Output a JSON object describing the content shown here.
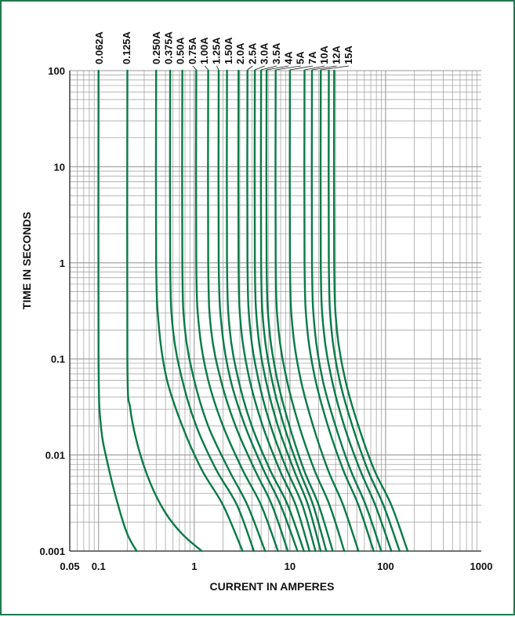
{
  "colors": {
    "curve": "#0a7a48",
    "grid": "#9a9a9a",
    "border": "#1e7b4f",
    "text": "#111111"
  },
  "chart_data": {
    "type": "line",
    "title": "",
    "xlabel": "CURRENT IN AMPERES",
    "ylabel": "TIME IN SECONDS",
    "x_scale": "log",
    "y_scale": "log",
    "xlim": [
      0.05,
      1000
    ],
    "ylim": [
      0.001,
      100
    ],
    "grid": true,
    "x_ticks": [
      {
        "value": 0.05,
        "label": "0.05"
      },
      {
        "value": 0.1,
        "label": "0.1"
      },
      {
        "value": 1,
        "label": "1"
      },
      {
        "value": 10,
        "label": "10"
      },
      {
        "value": 100,
        "label": "100"
      },
      {
        "value": 1000,
        "label": "1000"
      }
    ],
    "y_ticks": [
      {
        "value": 100,
        "label": "100"
      },
      {
        "value": 10,
        "label": "10"
      },
      {
        "value": 1,
        "label": "1"
      },
      {
        "value": 0.1,
        "label": "0.1"
      },
      {
        "value": 0.01,
        "label": "0.01"
      },
      {
        "value": 0.001,
        "label": "0.001"
      }
    ],
    "series": [
      {
        "name": "0.062A",
        "points": [
          [
            0.1,
            100
          ],
          [
            0.1,
            0.1
          ],
          [
            0.106,
            0.02
          ],
          [
            0.125,
            0.008
          ],
          [
            0.16,
            0.003
          ],
          [
            0.2,
            0.0015
          ],
          [
            0.25,
            0.001
          ]
        ]
      },
      {
        "name": "0.125A",
        "points": [
          [
            0.2,
            100
          ],
          [
            0.2,
            0.1
          ],
          [
            0.215,
            0.03
          ],
          [
            0.26,
            0.012
          ],
          [
            0.35,
            0.005
          ],
          [
            0.5,
            0.0025
          ],
          [
            0.75,
            0.0015
          ],
          [
            1.2,
            0.001
          ]
        ]
      },
      {
        "name": "0.250A",
        "points": [
          [
            0.4,
            100
          ],
          [
            0.4,
            1
          ],
          [
            0.43,
            0.2
          ],
          [
            0.52,
            0.06
          ],
          [
            0.75,
            0.02
          ],
          [
            1.2,
            0.007
          ],
          [
            2,
            0.003
          ],
          [
            3.2,
            0.001
          ]
        ]
      },
      {
        "name": "0.375A",
        "points": [
          [
            0.56,
            100
          ],
          [
            0.56,
            1
          ],
          [
            0.6,
            0.2
          ],
          [
            0.75,
            0.06
          ],
          [
            1.05,
            0.02
          ],
          [
            1.7,
            0.007
          ],
          [
            2.8,
            0.003
          ],
          [
            4.2,
            0.001
          ]
        ]
      },
      {
        "name": "0.50A",
        "points": [
          [
            0.75,
            100
          ],
          [
            0.75,
            1
          ],
          [
            0.8,
            0.2
          ],
          [
            1,
            0.06
          ],
          [
            1.4,
            0.02
          ],
          [
            2.3,
            0.007
          ],
          [
            3.6,
            0.003
          ],
          [
            5.5,
            0.001
          ]
        ]
      },
      {
        "name": "0.75A",
        "points": [
          [
            1.05,
            100
          ],
          [
            1.05,
            1
          ],
          [
            1.13,
            0.2
          ],
          [
            1.4,
            0.06
          ],
          [
            2,
            0.02
          ],
          [
            3.2,
            0.007
          ],
          [
            5,
            0.003
          ],
          [
            7.5,
            0.001
          ]
        ]
      },
      {
        "name": "1.00A",
        "points": [
          [
            1.4,
            100
          ],
          [
            1.4,
            1
          ],
          [
            1.5,
            0.2
          ],
          [
            1.9,
            0.06
          ],
          [
            2.7,
            0.02
          ],
          [
            4.3,
            0.007
          ],
          [
            6.5,
            0.003
          ],
          [
            9.5,
            0.001
          ]
        ]
      },
      {
        "name": "1.25A",
        "points": [
          [
            1.8,
            100
          ],
          [
            1.8,
            1
          ],
          [
            1.95,
            0.2
          ],
          [
            2.4,
            0.06
          ],
          [
            3.4,
            0.02
          ],
          [
            5.3,
            0.007
          ],
          [
            8,
            0.003
          ],
          [
            12,
            0.001
          ]
        ]
      },
      {
        "name": "1.50A",
        "points": [
          [
            2.2,
            100
          ],
          [
            2.2,
            1
          ],
          [
            2.35,
            0.2
          ],
          [
            2.9,
            0.06
          ],
          [
            4,
            0.02
          ],
          [
            6.2,
            0.007
          ],
          [
            9.5,
            0.003
          ],
          [
            14,
            0.001
          ]
        ]
      },
      {
        "name": "2.0A",
        "points": [
          [
            2.9,
            100
          ],
          [
            2.9,
            1
          ],
          [
            3.1,
            0.2
          ],
          [
            3.8,
            0.06
          ],
          [
            5.2,
            0.02
          ],
          [
            7.8,
            0.007
          ],
          [
            11.5,
            0.003
          ],
          [
            16,
            0.001
          ]
        ]
      },
      {
        "name": "2.5A",
        "points": [
          [
            3.6,
            100
          ],
          [
            3.6,
            1
          ],
          [
            3.85,
            0.2
          ],
          [
            4.7,
            0.06
          ],
          [
            6.3,
            0.02
          ],
          [
            9.3,
            0.007
          ],
          [
            13.5,
            0.003
          ],
          [
            18.5,
            0.001
          ]
        ]
      },
      {
        "name": "3.0A",
        "points": [
          [
            4.3,
            100
          ],
          [
            4.3,
            1
          ],
          [
            4.6,
            0.2
          ],
          [
            5.6,
            0.06
          ],
          [
            7.5,
            0.02
          ],
          [
            11,
            0.007
          ],
          [
            15.5,
            0.003
          ],
          [
            21,
            0.001
          ]
        ]
      },
      {
        "name": "3.5A",
        "points": [
          [
            5,
            100
          ],
          [
            5,
            1
          ],
          [
            5.35,
            0.2
          ],
          [
            6.5,
            0.06
          ],
          [
            8.7,
            0.02
          ],
          [
            12.5,
            0.007
          ],
          [
            17.5,
            0.003
          ],
          [
            24,
            0.001
          ]
        ]
      },
      {
        "name": "4A",
        "points": [
          [
            5.7,
            100
          ],
          [
            5.7,
            1
          ],
          [
            6.1,
            0.2
          ],
          [
            7.4,
            0.06
          ],
          [
            9.9,
            0.02
          ],
          [
            14,
            0.007
          ],
          [
            20,
            0.003
          ],
          [
            28,
            0.001
          ]
        ]
      },
      {
        "name": "5A",
        "points": [
          [
            7.1,
            100
          ],
          [
            7.1,
            1
          ],
          [
            7.6,
            0.2
          ],
          [
            9.3,
            0.06
          ],
          [
            12.5,
            0.02
          ],
          [
            18,
            0.007
          ],
          [
            26,
            0.003
          ],
          [
            37,
            0.001
          ]
        ]
      },
      {
        "name": "7A",
        "points": [
          [
            10,
            100
          ],
          [
            10,
            1
          ],
          [
            10.7,
            0.2
          ],
          [
            13,
            0.06
          ],
          [
            17.5,
            0.02
          ],
          [
            25,
            0.007
          ],
          [
            36,
            0.003
          ],
          [
            52,
            0.001
          ]
        ]
      },
      {
        "name": "10A",
        "points": [
          [
            14.2,
            100
          ],
          [
            14.2,
            1
          ],
          [
            15.2,
            0.2
          ],
          [
            18.5,
            0.06
          ],
          [
            25,
            0.02
          ],
          [
            36,
            0.007
          ],
          [
            52,
            0.003
          ],
          [
            75,
            0.001
          ]
        ]
      },
      {
        "name": "12A",
        "points": [
          [
            17,
            100
          ],
          [
            17,
            1
          ],
          [
            18.2,
            0.2
          ],
          [
            22,
            0.06
          ],
          [
            30,
            0.02
          ],
          [
            43,
            0.007
          ],
          [
            62,
            0.003
          ],
          [
            90,
            0.001
          ]
        ]
      },
      {
        "name": "15A",
        "points": [
          [
            21,
            100
          ],
          [
            21,
            1
          ],
          [
            22.5,
            0.2
          ],
          [
            27.5,
            0.06
          ],
          [
            37,
            0.02
          ],
          [
            54,
            0.007
          ],
          [
            78,
            0.003
          ],
          [
            115,
            0.001
          ]
        ]
      },
      {
        "name": "",
        "points": [
          [
            25.5,
            100
          ],
          [
            25.5,
            1
          ],
          [
            27.2,
            0.2
          ],
          [
            33,
            0.06
          ],
          [
            45,
            0.02
          ],
          [
            65,
            0.007
          ],
          [
            95,
            0.003
          ],
          [
            140,
            0.001
          ]
        ]
      },
      {
        "name": "",
        "points": [
          [
            29,
            100
          ],
          [
            29,
            1
          ],
          [
            31,
            0.2
          ],
          [
            38,
            0.06
          ],
          [
            52,
            0.02
          ],
          [
            76,
            0.007
          ],
          [
            115,
            0.003
          ],
          [
            170,
            0.001
          ]
        ]
      }
    ]
  }
}
